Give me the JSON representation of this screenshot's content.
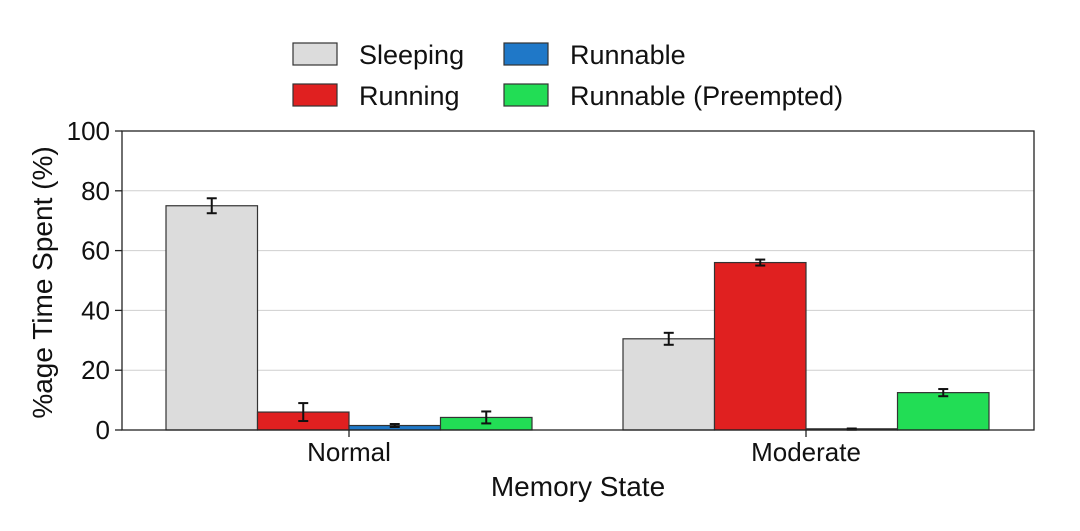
{
  "chart_data": {
    "type": "bar",
    "categories": [
      "Normal",
      "Moderate"
    ],
    "xlabel": "Memory State",
    "ylabel": "%age Time Spent (%)",
    "ylim": [
      0,
      100
    ],
    "yticks": [
      0,
      20,
      40,
      60,
      80,
      100
    ],
    "grid": true,
    "legend_position": "top-center",
    "series": [
      {
        "name": "Sleeping",
        "color": "#dcdcdc",
        "values": [
          75,
          30.5
        ],
        "errors": [
          2.5,
          2.0
        ]
      },
      {
        "name": "Running",
        "color": "#e02020",
        "values": [
          6,
          56
        ],
        "errors": [
          3.0,
          1.0
        ]
      },
      {
        "name": "Runnable",
        "color": "#1f78c8",
        "values": [
          1.5,
          0.3
        ],
        "errors": [
          0.5,
          0.2
        ]
      },
      {
        "name": "Runnable (Preempted)",
        "color": "#22dd55",
        "values": [
          4.2,
          12.5
        ],
        "errors": [
          2.0,
          1.2
        ]
      }
    ]
  }
}
